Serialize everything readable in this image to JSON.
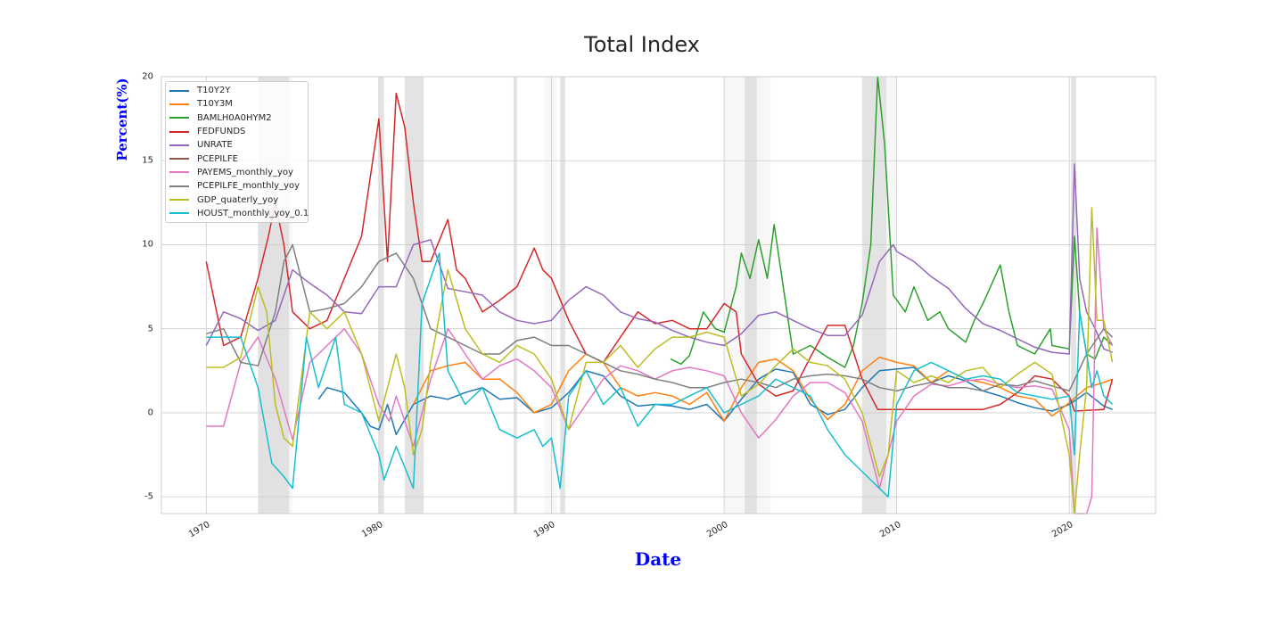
{
  "chart_data": {
    "type": "line",
    "title": "Total Index",
    "xlabel": "Date",
    "ylabel": "Percent(%)",
    "xlim": [
      1967.4,
      2025.0
    ],
    "ylim": [
      -6,
      20
    ],
    "grid": true,
    "legend_position": "top-left",
    "xticks": [
      {
        "value": 1970,
        "label": "1970"
      },
      {
        "value": 1980,
        "label": "1980"
      },
      {
        "value": 1990,
        "label": "1990"
      },
      {
        "value": 2000,
        "label": "2000"
      },
      {
        "value": 2010,
        "label": "2010"
      },
      {
        "value": 2020,
        "label": "2020"
      }
    ],
    "yticks": [
      {
        "value": 20,
        "label": "20"
      },
      {
        "value": 15,
        "label": "15"
      },
      {
        "value": 10,
        "label": "10"
      },
      {
        "value": 5,
        "label": "5"
      },
      {
        "value": 0,
        "label": "0"
      },
      {
        "value": -5,
        "label": "-5"
      }
    ],
    "recessions": [
      [
        1973.0,
        1974.8
      ],
      [
        1980.0,
        1980.3
      ],
      [
        1981.5,
        1982.6
      ],
      [
        1987.8,
        1988.0
      ],
      [
        1990.5,
        1990.8
      ],
      [
        2001.2,
        2001.9
      ],
      [
        2008.0,
        2009.4
      ],
      [
        2020.1,
        2020.4
      ]
    ],
    "light_shading": [
      [
        1973.0,
        1975.0
      ],
      [
        1989.6,
        1990.3
      ],
      [
        2000.0,
        2002.7
      ],
      [
        2009.4,
        2010.0
      ]
    ],
    "series": [
      {
        "name": "T10Y2Y",
        "color": "#1f77b4",
        "x": [
          1976.5,
          1977,
          1978,
          1979,
          1979.5,
          1980,
          1980.5,
          1981,
          1982,
          1983,
          1984,
          1985,
          1986,
          1987,
          1988,
          1989,
          1990,
          1991,
          1992,
          1993,
          1994,
          1995,
          1996,
          1997,
          1998,
          1999,
          2000,
          2001,
          2002,
          2003,
          2004,
          2005,
          2006,
          2007,
          2008,
          2009,
          2010,
          2011,
          2012,
          2013,
          2014,
          2015,
          2016,
          2017,
          2018,
          2019,
          2020,
          2021,
          2022,
          2022.5
        ],
        "values": [
          0.8,
          1.5,
          1.2,
          0.0,
          -0.8,
          -1.0,
          0.5,
          -1.3,
          0.5,
          1.0,
          0.8,
          1.2,
          1.5,
          0.8,
          0.9,
          0.0,
          0.3,
          1.2,
          2.5,
          2.2,
          1.0,
          0.4,
          0.5,
          0.4,
          0.2,
          0.5,
          -0.5,
          0.8,
          2.0,
          2.6,
          2.4,
          0.5,
          -0.1,
          0.2,
          1.5,
          2.5,
          2.6,
          2.7,
          1.8,
          2.2,
          1.9,
          1.3,
          1.0,
          0.6,
          0.3,
          0.1,
          0.5,
          1.2,
          0.4,
          0.2
        ]
      },
      {
        "name": "T10Y3M",
        "color": "#ff7f0e",
        "x": [
          1982,
          1982.5,
          1983,
          1984,
          1985,
          1986,
          1987,
          1988,
          1989,
          1990,
          1991,
          1992,
          1993,
          1994,
          1995,
          1996,
          1997,
          1998,
          1999,
          2000,
          2001,
          2002,
          2003,
          2004,
          2005,
          2006,
          2007,
          2008,
          2009,
          2010,
          2011,
          2012,
          2013,
          2014,
          2015,
          2016,
          2017,
          2018,
          2019,
          2020,
          2021,
          2022,
          2022.5
        ],
        "values": [
          0.5,
          1.5,
          2.5,
          2.8,
          3.0,
          2.0,
          2.0,
          1.2,
          0.0,
          0.5,
          2.5,
          3.5,
          3.0,
          1.5,
          1.0,
          1.2,
          1.0,
          0.5,
          1.2,
          -0.5,
          1.5,
          3.0,
          3.2,
          2.5,
          0.8,
          -0.4,
          0.5,
          2.5,
          3.3,
          3.0,
          2.8,
          1.8,
          2.5,
          2.0,
          1.8,
          1.5,
          1.0,
          0.8,
          -0.2,
          0.6,
          1.5,
          1.8,
          2.0
        ]
      },
      {
        "name": "BAMLH0A0HYM2",
        "color": "#2ca02c",
        "x": [
          1996.9,
          1997.5,
          1998,
          1998.8,
          1999.5,
          2000,
          2000.7,
          2001,
          2001.5,
          2002,
          2002.5,
          2002.9,
          2003.5,
          2004,
          2005,
          2006,
          2007,
          2007.5,
          2008,
          2008.5,
          2008.9,
          2009.3,
          2009.8,
          2010.5,
          2011,
          2011.8,
          2012.5,
          2013,
          2014,
          2014.5,
          2015,
          2016,
          2016.5,
          2017,
          2018,
          2018.9,
          2019,
          2020,
          2020.3,
          2020.6,
          2021,
          2021.5,
          2022,
          2022.5
        ],
        "values": [
          3.2,
          2.9,
          3.4,
          6.0,
          5.0,
          4.8,
          7.5,
          9.5,
          8.0,
          10.3,
          8.0,
          11.2,
          7.0,
          3.5,
          4.0,
          3.3,
          2.7,
          4.0,
          6.5,
          10.0,
          20.0,
          16.0,
          7.0,
          6.0,
          7.5,
          5.5,
          6.0,
          5.0,
          4.2,
          5.5,
          6.5,
          8.8,
          6.0,
          4.0,
          3.5,
          5.0,
          4.0,
          3.8,
          10.5,
          6.0,
          3.5,
          3.2,
          4.5,
          4.0
        ]
      },
      {
        "name": "FEDFUNDS",
        "color": "#d62728",
        "x": [
          1970,
          1971,
          1972,
          1973,
          1973.6,
          1974,
          1974.5,
          1975,
          1976,
          1977,
          1978,
          1979,
          1979.5,
          1980,
          1980.5,
          1981,
          1981.5,
          1982,
          1982.5,
          1983,
          1984,
          1984.5,
          1985,
          1986,
          1987,
          1988,
          1989,
          1989.5,
          1990,
          1991,
          1992,
          1993,
          1994,
          1995,
          1996,
          1997,
          1998,
          1999,
          2000,
          2000.7,
          2001,
          2002,
          2003,
          2004,
          2005,
          2006,
          2007,
          2008,
          2008.9,
          2010,
          2015,
          2016,
          2017,
          2018,
          2019,
          2020,
          2020.3,
          2022,
          2022.5
        ],
        "values": [
          9.0,
          4.0,
          4.5,
          8.0,
          10.5,
          12.5,
          10.0,
          6.0,
          5.0,
          5.5,
          8.0,
          10.5,
          14.0,
          17.5,
          9.0,
          19.0,
          17.0,
          12.5,
          9.0,
          9.0,
          11.5,
          8.5,
          8.0,
          6.0,
          6.7,
          7.5,
          9.8,
          8.5,
          8.0,
          5.5,
          3.5,
          3.0,
          4.5,
          6.0,
          5.3,
          5.5,
          5.0,
          5.0,
          6.5,
          6.0,
          3.5,
          1.7,
          1.0,
          1.3,
          3.3,
          5.2,
          5.2,
          2.0,
          0.2,
          0.2,
          0.2,
          0.5,
          1.2,
          2.2,
          2.0,
          1.0,
          0.1,
          0.2,
          2.0
        ]
      },
      {
        "name": "UNRATE",
        "color": "#9467bd",
        "x": [
          1970,
          1971,
          1972,
          1973,
          1974,
          1975,
          1976,
          1977,
          1978,
          1979,
          1980,
          1981,
          1982,
          1983,
          1984,
          1985,
          1986,
          1987,
          1988,
          1989,
          1990,
          1991,
          1992,
          1993,
          1994,
          1995,
          1996,
          1997,
          1998,
          1999,
          2000,
          2001,
          2002,
          2003,
          2004,
          2005,
          2006,
          2007,
          2008,
          2009,
          2009.8,
          2010,
          2011,
          2012,
          2013,
          2014,
          2015,
          2016,
          2017,
          2018,
          2019,
          2020,
          2020.3,
          2020.6,
          2021,
          2021.5,
          2022,
          2022.5
        ],
        "values": [
          4.0,
          6.0,
          5.6,
          4.9,
          5.5,
          8.5,
          7.7,
          7.0,
          6.0,
          5.9,
          7.5,
          7.5,
          10.0,
          10.3,
          7.4,
          7.2,
          7.0,
          6.0,
          5.5,
          5.3,
          5.5,
          6.7,
          7.5,
          7.0,
          6.0,
          5.6,
          5.4,
          4.9,
          4.5,
          4.2,
          4.0,
          4.7,
          5.8,
          6.0,
          5.5,
          5.0,
          4.6,
          4.6,
          5.8,
          9.0,
          10.0,
          9.6,
          9.0,
          8.1,
          7.4,
          6.2,
          5.3,
          4.9,
          4.4,
          3.9,
          3.6,
          3.5,
          14.8,
          8.0,
          6.0,
          5.0,
          3.8,
          3.6
        ]
      },
      {
        "name": "PCEPILFE",
        "color": "#8c564b",
        "x": [],
        "values": []
      },
      {
        "name": "PAYEMS_monthly_yoy",
        "color": "#e377c2",
        "x": [
          1970,
          1971,
          1972,
          1973,
          1974,
          1975,
          1976,
          1977,
          1978,
          1979,
          1980,
          1980.6,
          1981,
          1982,
          1983,
          1984,
          1985,
          1986,
          1987,
          1988,
          1989,
          1990,
          1991,
          1992,
          1993,
          1994,
          1995,
          1996,
          1997,
          1998,
          1999,
          2000,
          2001,
          2002,
          2003,
          2004,
          2005,
          2006,
          2007,
          2008,
          2009,
          2010,
          2011,
          2012,
          2013,
          2014,
          2015,
          2016,
          2017,
          2018,
          2019,
          2020,
          2020.3,
          2020.6,
          2021,
          2021.3,
          2021.6,
          2022,
          2022.5
        ],
        "values": [
          -0.8,
          -0.8,
          3.0,
          4.5,
          2.0,
          -1.6,
          3.0,
          4.0,
          5.0,
          3.5,
          0.5,
          -0.5,
          1.0,
          -2.0,
          2.0,
          5.0,
          3.5,
          2.0,
          2.8,
          3.2,
          2.5,
          1.5,
          -1.0,
          0.5,
          2.0,
          2.8,
          2.5,
          2.0,
          2.5,
          2.7,
          2.5,
          2.2,
          0.0,
          -1.5,
          -0.4,
          1.0,
          1.8,
          1.8,
          1.2,
          -0.5,
          -4.5,
          -0.5,
          1.0,
          1.7,
          1.6,
          1.9,
          2.0,
          1.7,
          1.5,
          1.6,
          1.4,
          -1.0,
          -6.0,
          -6.0,
          -6.0,
          -5.0,
          11.0,
          5.0,
          4.0
        ]
      },
      {
        "name": "PCEPILFE_monthly_yoy",
        "color": "#7f7f7f",
        "x": [
          1970,
          1971,
          1972,
          1973,
          1974,
          1974.5,
          1975,
          1976,
          1977,
          1978,
          1979,
          1980,
          1981,
          1982,
          1983,
          1984,
          1985,
          1986,
          1987,
          1988,
          1989,
          1990,
          1991,
          1992,
          1993,
          1994,
          1995,
          1996,
          1997,
          1998,
          1999,
          2000,
          2001,
          2002,
          2003,
          2004,
          2005,
          2006,
          2007,
          2008,
          2009,
          2010,
          2011,
          2012,
          2013,
          2014,
          2015,
          2016,
          2017,
          2018,
          2019,
          2020,
          2021,
          2022,
          2022.5
        ],
        "values": [
          4.7,
          5.0,
          3.0,
          2.8,
          6.0,
          9.0,
          10.0,
          6.0,
          6.2,
          6.5,
          7.5,
          9.0,
          9.5,
          8.0,
          5.0,
          4.5,
          4.0,
          3.5,
          3.5,
          4.3,
          4.5,
          4.0,
          4.0,
          3.5,
          3.0,
          2.5,
          2.3,
          2.0,
          1.8,
          1.5,
          1.5,
          1.8,
          2.0,
          1.8,
          1.5,
          2.0,
          2.2,
          2.3,
          2.2,
          2.0,
          1.5,
          1.3,
          1.6,
          1.8,
          1.5,
          1.5,
          1.3,
          1.7,
          1.6,
          1.9,
          1.6,
          1.3,
          3.5,
          5.0,
          4.5
        ]
      },
      {
        "name": "GDP_quaterly_yoy",
        "color": "#bcbd22",
        "x": [
          1970,
          1971,
          1972,
          1973,
          1973.5,
          1974,
          1974.5,
          1975,
          1976,
          1977,
          1978,
          1979,
          1980,
          1981,
          1981.5,
          1982,
          1982.5,
          1983,
          1984,
          1985,
          1986,
          1987,
          1988,
          1989,
          1990,
          1991,
          1992,
          1993,
          1994,
          1995,
          1996,
          1997,
          1998,
          1999,
          2000,
          2001,
          2002,
          2003,
          2004,
          2005,
          2006,
          2007,
          2008,
          2009,
          2009.5,
          2010,
          2011,
          2012,
          2013,
          2014,
          2015,
          2016,
          2017,
          2018,
          2019,
          2020,
          2020.3,
          2020.6,
          2021,
          2021.3,
          2021.6,
          2022,
          2022.5
        ],
        "values": [
          2.7,
          2.7,
          3.3,
          7.5,
          6.0,
          0.5,
          -1.5,
          -2.0,
          6.0,
          5.0,
          6.0,
          3.5,
          -0.5,
          3.5,
          1.5,
          -2.5,
          -1.0,
          3.0,
          8.5,
          5.0,
          3.5,
          3.0,
          4.0,
          3.5,
          2.0,
          -1.0,
          3.0,
          3.0,
          4.0,
          2.7,
          3.8,
          4.5,
          4.5,
          4.8,
          4.5,
          1.0,
          1.7,
          2.8,
          3.8,
          3.0,
          2.8,
          2.0,
          0.0,
          -3.8,
          -2.5,
          2.5,
          1.8,
          2.2,
          1.8,
          2.5,
          2.7,
          1.5,
          2.3,
          3.0,
          2.3,
          -2.5,
          -9.0,
          -2.5,
          1.5,
          12.2,
          5.5,
          5.5,
          3.0
        ]
      },
      {
        "name": "HOUST_monthly_yoy_0.1",
        "color": "#17becf",
        "x": [
          1970,
          1971,
          1972,
          1973,
          1973.8,
          1974.5,
          1975,
          1975.8,
          1976.5,
          1977,
          1977.5,
          1978,
          1979,
          1980,
          1980.3,
          1981,
          1982,
          1982.5,
          1983,
          1983.5,
          1984,
          1985,
          1986,
          1987,
          1988,
          1989,
          1989.5,
          1990,
          1990.5,
          1991,
          1992,
          1993,
          1994,
          1995,
          1996,
          1997,
          1998,
          1999,
          2000,
          2001,
          2002,
          2003,
          2004,
          2005,
          2006,
          2007,
          2008,
          2009,
          2009.5,
          2010,
          2011,
          2012,
          2013,
          2014,
          2015,
          2016,
          2017,
          2018,
          2019,
          2020,
          2020.3,
          2020.6,
          2021,
          2021.3,
          2021.6,
          2022,
          2022.5
        ],
        "values": [
          4.5,
          4.5,
          4.5,
          1.5,
          -3.0,
          -3.8,
          -4.5,
          4.5,
          1.5,
          3.0,
          4.5,
          0.5,
          0.0,
          -2.5,
          -4.0,
          -2.0,
          -4.5,
          6.5,
          8.0,
          9.5,
          2.5,
          0.5,
          1.5,
          -1.0,
          -1.5,
          -1.0,
          -2.0,
          -1.5,
          -4.5,
          1.0,
          2.5,
          0.5,
          1.5,
          -0.8,
          0.5,
          0.5,
          1.0,
          1.5,
          0.0,
          0.5,
          1.0,
          2.0,
          1.5,
          1.0,
          -1.0,
          -2.5,
          -3.5,
          -4.5,
          -5.0,
          0.5,
          2.5,
          3.0,
          2.5,
          2.0,
          2.2,
          2.0,
          1.2,
          1.0,
          0.8,
          1.0,
          -2.5,
          6.0,
          3.5,
          1.5,
          2.5,
          1.0,
          0.5
        ]
      }
    ]
  }
}
